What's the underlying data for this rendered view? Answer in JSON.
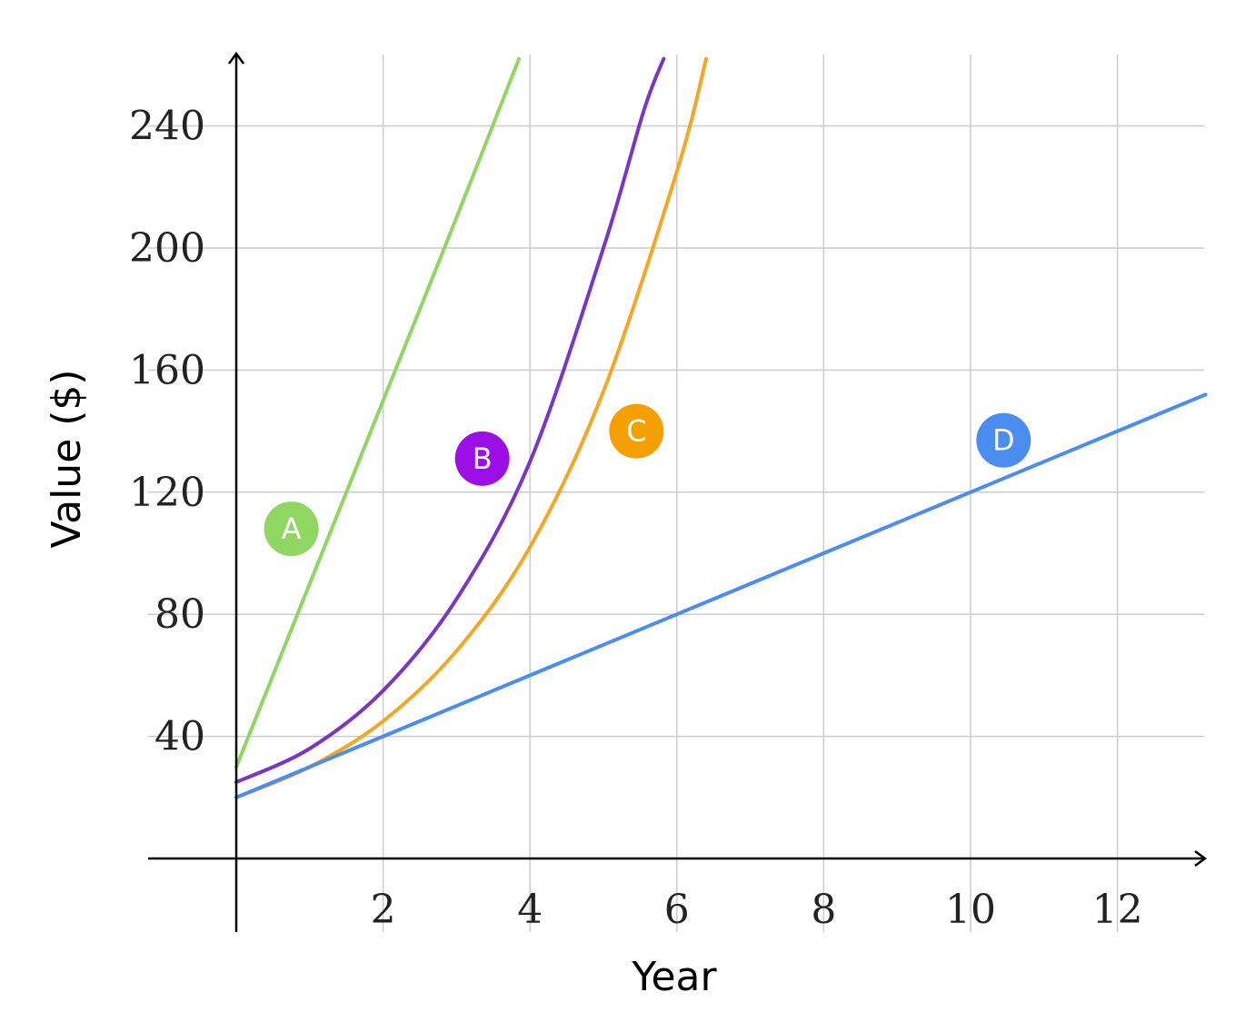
{
  "chart_data": {
    "type": "line",
    "xlabel": "Year",
    "ylabel": "Value ($)",
    "xlim": [
      -3,
      13.2
    ],
    "ylim": [
      -24,
      262
    ],
    "x_ticks": [
      2,
      4,
      6,
      8,
      10,
      12
    ],
    "y_ticks": [
      40,
      80,
      120,
      160,
      200,
      240
    ],
    "grid": true,
    "series": [
      {
        "name": "A",
        "color": "#8fd662",
        "label_at": [
          0.75,
          108
        ],
        "points": [
          [
            0,
            30
          ],
          [
            2,
            150
          ],
          [
            3,
            210
          ],
          [
            3.85,
            262
          ]
        ]
      },
      {
        "name": "B",
        "color": "#7a35c8",
        "label_at": [
          3.35,
          131
        ],
        "points": [
          [
            0,
            25
          ],
          [
            1,
            36
          ],
          [
            2,
            55
          ],
          [
            3,
            85
          ],
          [
            4,
            130
          ],
          [
            5,
            200
          ],
          [
            5.55,
            245
          ],
          [
            5.82,
            262
          ]
        ]
      },
      {
        "name": "C",
        "color": "#f5a623",
        "label_at": [
          5.45,
          140
        ],
        "points": [
          [
            0,
            20
          ],
          [
            1,
            30
          ],
          [
            2,
            45
          ],
          [
            3,
            68
          ],
          [
            4,
            102
          ],
          [
            5,
            153
          ],
          [
            6,
            225
          ],
          [
            6.4,
            262
          ]
        ]
      },
      {
        "name": "D",
        "color": "#4a8cf0",
        "label_at": [
          10.45,
          137
        ],
        "points": [
          [
            0,
            20
          ],
          [
            2,
            40
          ],
          [
            4,
            60
          ],
          [
            6,
            80
          ],
          [
            8,
            100
          ],
          [
            10,
            120
          ],
          [
            12,
            140
          ],
          [
            13.2,
            152
          ]
        ]
      }
    ],
    "badge_colors": {
      "A": "#8fd662",
      "B": "#9b0fe6",
      "C": "#f5a000",
      "D": "#4a8cf0"
    }
  }
}
